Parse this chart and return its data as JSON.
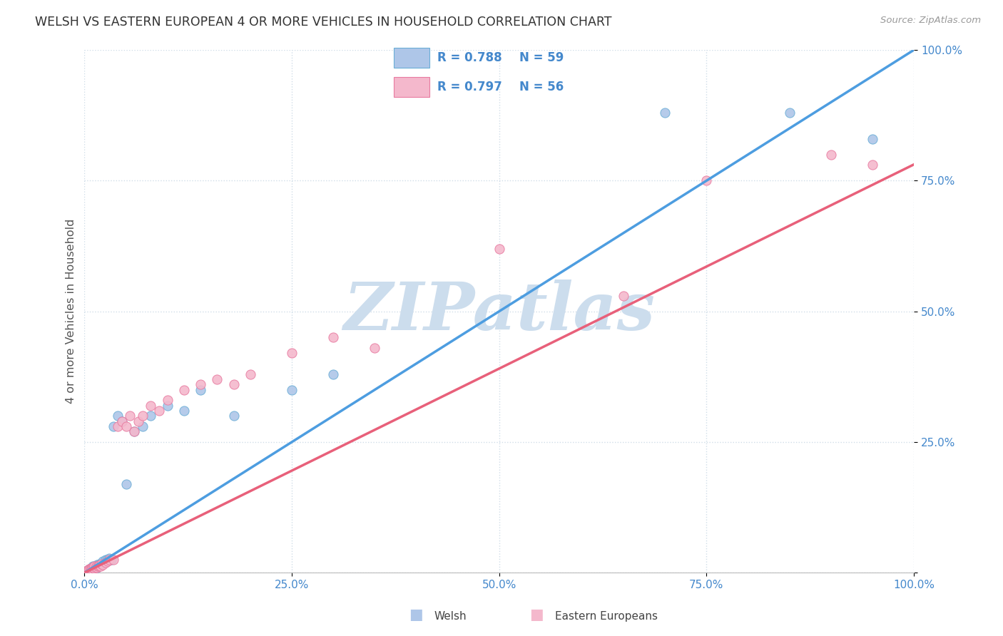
{
  "title": "WELSH VS EASTERN EUROPEAN 4 OR MORE VEHICLES IN HOUSEHOLD CORRELATION CHART",
  "source": "Source: ZipAtlas.com",
  "ylabel": "4 or more Vehicles in Household",
  "xlim": [
    0,
    1.0
  ],
  "ylim": [
    0,
    1.0
  ],
  "xticks": [
    0.0,
    0.25,
    0.5,
    0.75,
    1.0
  ],
  "yticks": [
    0.0,
    0.25,
    0.5,
    0.75,
    1.0
  ],
  "xtick_labels": [
    "0.0%",
    "25.0%",
    "50.0%",
    "75.0%",
    "100.0%"
  ],
  "ytick_labels": [
    "",
    "25.0%",
    "50.0%",
    "75.0%",
    "100.0%"
  ],
  "welsh_R": 0.788,
  "welsh_N": 59,
  "eastern_R": 0.797,
  "eastern_N": 56,
  "welsh_color": "#aec6e8",
  "welsh_edge_color": "#6aaed6",
  "eastern_color": "#f4b8cc",
  "eastern_edge_color": "#e87aa0",
  "welsh_line_color": "#4d9de0",
  "eastern_line_color": "#e8607a",
  "diagonal_color": "#c8c8c8",
  "watermark_color": "#ccdded",
  "background_color": "#ffffff",
  "grid_color": "#d0dde8",
  "legend_box_color": "#f0f4f8",
  "legend_border_color": "#c0c8d0",
  "title_color": "#333333",
  "source_color": "#999999",
  "tick_color": "#4488cc",
  "ylabel_color": "#555555",
  "welsh_x": [
    0.002,
    0.003,
    0.003,
    0.004,
    0.004,
    0.005,
    0.005,
    0.005,
    0.006,
    0.006,
    0.006,
    0.007,
    0.007,
    0.007,
    0.008,
    0.008,
    0.008,
    0.009,
    0.009,
    0.009,
    0.01,
    0.01,
    0.01,
    0.011,
    0.011,
    0.012,
    0.012,
    0.013,
    0.013,
    0.014,
    0.015,
    0.015,
    0.016,
    0.017,
    0.018,
    0.019,
    0.02,
    0.021,
    0.022,
    0.025,
    0.027,
    0.03,
    0.032,
    0.035,
    0.04,
    0.045,
    0.05,
    0.06,
    0.07,
    0.08,
    0.1,
    0.12,
    0.14,
    0.18,
    0.25,
    0.3,
    0.7,
    0.85,
    0.95
  ],
  "welsh_y": [
    0.002,
    0.003,
    0.004,
    0.002,
    0.005,
    0.003,
    0.004,
    0.006,
    0.003,
    0.005,
    0.007,
    0.004,
    0.006,
    0.008,
    0.004,
    0.006,
    0.009,
    0.005,
    0.007,
    0.01,
    0.005,
    0.008,
    0.012,
    0.007,
    0.01,
    0.008,
    0.012,
    0.009,
    0.013,
    0.012,
    0.01,
    0.015,
    0.012,
    0.014,
    0.016,
    0.015,
    0.018,
    0.02,
    0.022,
    0.025,
    0.025,
    0.028,
    0.025,
    0.28,
    0.3,
    0.29,
    0.17,
    0.27,
    0.28,
    0.3,
    0.32,
    0.31,
    0.35,
    0.3,
    0.35,
    0.38,
    0.88,
    0.88,
    0.83
  ],
  "eastern_x": [
    0.002,
    0.003,
    0.003,
    0.004,
    0.004,
    0.005,
    0.005,
    0.006,
    0.006,
    0.007,
    0.007,
    0.008,
    0.008,
    0.009,
    0.009,
    0.01,
    0.01,
    0.011,
    0.012,
    0.012,
    0.013,
    0.014,
    0.015,
    0.016,
    0.017,
    0.018,
    0.019,
    0.02,
    0.022,
    0.025,
    0.028,
    0.03,
    0.035,
    0.04,
    0.045,
    0.05,
    0.055,
    0.06,
    0.065,
    0.07,
    0.08,
    0.09,
    0.1,
    0.12,
    0.14,
    0.16,
    0.18,
    0.2,
    0.25,
    0.3,
    0.35,
    0.5,
    0.65,
    0.75,
    0.9,
    0.95
  ],
  "eastern_y": [
    0.002,
    0.002,
    0.004,
    0.003,
    0.005,
    0.003,
    0.006,
    0.004,
    0.007,
    0.004,
    0.008,
    0.005,
    0.009,
    0.005,
    0.01,
    0.006,
    0.01,
    0.008,
    0.008,
    0.012,
    0.01,
    0.012,
    0.01,
    0.013,
    0.012,
    0.014,
    0.013,
    0.016,
    0.015,
    0.02,
    0.022,
    0.025,
    0.025,
    0.28,
    0.29,
    0.28,
    0.3,
    0.27,
    0.29,
    0.3,
    0.32,
    0.31,
    0.33,
    0.35,
    0.36,
    0.37,
    0.36,
    0.38,
    0.42,
    0.45,
    0.43,
    0.62,
    0.53,
    0.75,
    0.8,
    0.78
  ],
  "welsh_line": [
    0.0,
    1.02
  ],
  "eastern_line": [
    0.0,
    0.82
  ]
}
